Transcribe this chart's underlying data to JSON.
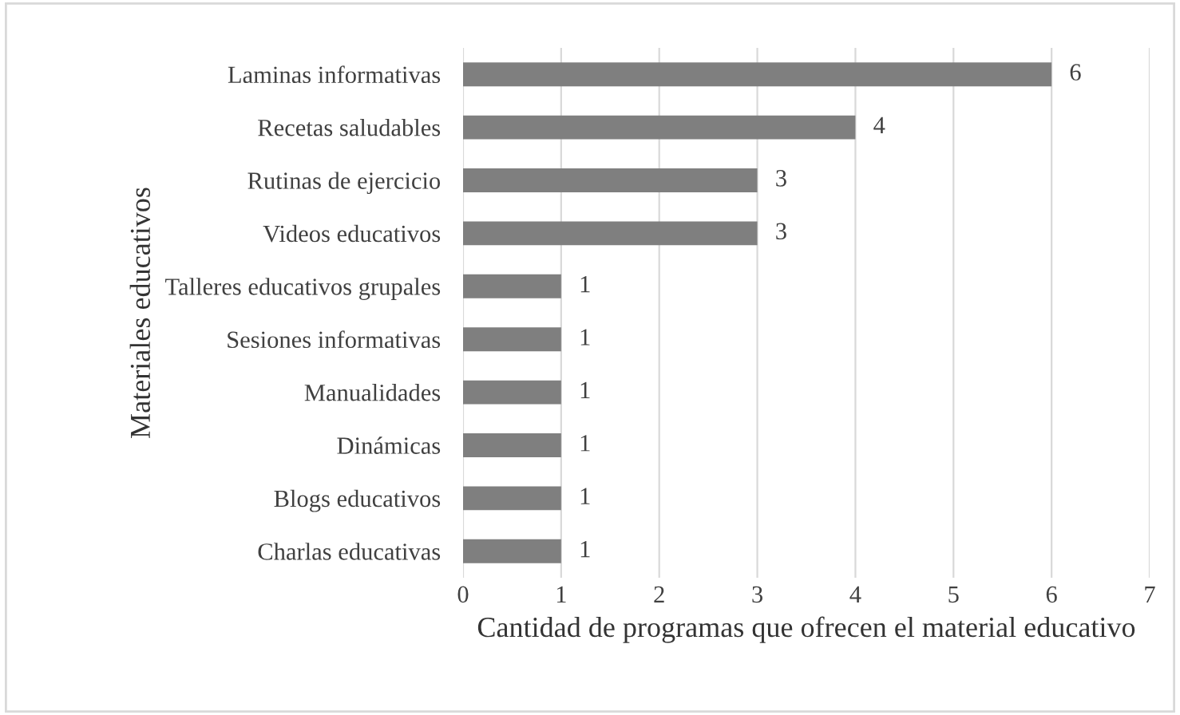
{
  "chart_data": {
    "type": "bar",
    "orientation": "horizontal",
    "categories": [
      "Laminas informativas",
      "Recetas saludables",
      "Rutinas de ejercicio",
      "Videos educativos",
      "Talleres educativos grupales",
      "Sesiones informativas",
      "Manualidades",
      "Dinámicas",
      "Blogs educativos",
      "Charlas educativas"
    ],
    "values": [
      6,
      4,
      3,
      3,
      1,
      1,
      1,
      1,
      1,
      1
    ],
    "color": "#7f7f7f",
    "xlabel": "Cantidad de programas que ofrecen el material educativo",
    "ylabel": "Materiales educativos",
    "xlim": [
      0,
      7
    ],
    "xticks": [
      0,
      1,
      2,
      3,
      4,
      5,
      6,
      7
    ],
    "grid": "x",
    "data_labels": true
  }
}
